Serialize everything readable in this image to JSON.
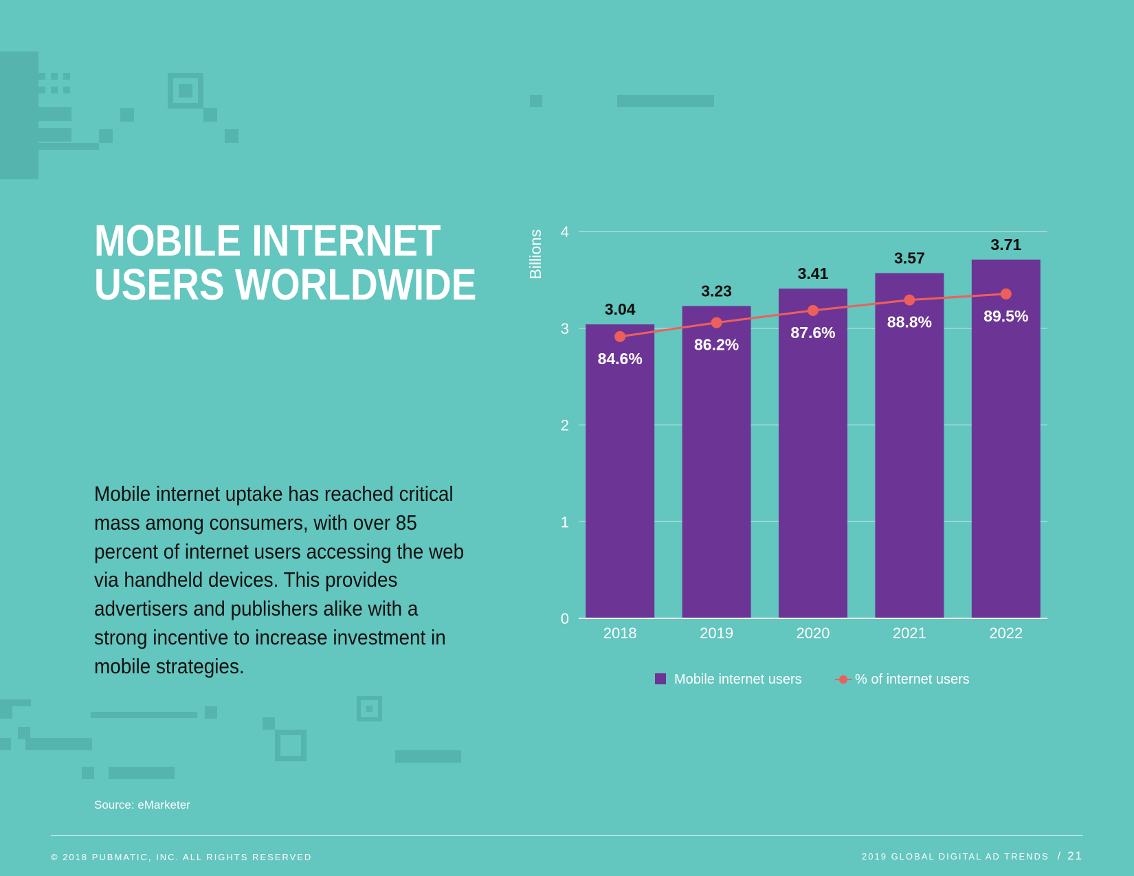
{
  "page": {
    "title_lines": [
      "MOBILE INTERNET",
      "USERS WORLDWIDE"
    ],
    "body": "Mobile internet uptake has reached critical mass among consumers, with over 85 percent of internet users accessing the web via handheld devices. This provides advertisers and publishers alike with a strong incentive to increase investment in mobile strategies.",
    "source": "Source: eMarketer"
  },
  "footer": {
    "copyright": "© 2018 PUBMATIC, INC. ALL RIGHTS RESERVED",
    "publication": "2019 GLOBAL DIGITAL AD TRENDS",
    "separator": "/",
    "page_number": "21"
  },
  "chart_data": {
    "type": "bar",
    "categories": [
      "2018",
      "2019",
      "2020",
      "2021",
      "2022"
    ],
    "ylabel": "Billions",
    "ylim": [
      0,
      4
    ],
    "yticks": [
      "0",
      "1",
      "2",
      "3",
      "4"
    ],
    "grid": true,
    "legend_placement": "bottom",
    "series": [
      {
        "name": "Mobile internet users",
        "type": "bar",
        "color": "#6C3595",
        "values": [
          3.04,
          3.23,
          3.41,
          3.57,
          3.71
        ],
        "labels": [
          "3.04",
          "3.23",
          "3.41",
          "3.57",
          "3.71"
        ]
      },
      {
        "name": "% of internet users",
        "type": "line",
        "color": "#EE5F5B",
        "values": [
          84.6,
          86.2,
          87.6,
          88.8,
          89.5
        ],
        "labels": [
          "84.6%",
          "86.2%",
          "87.6%",
          "88.8%",
          "89.5%"
        ]
      }
    ]
  }
}
